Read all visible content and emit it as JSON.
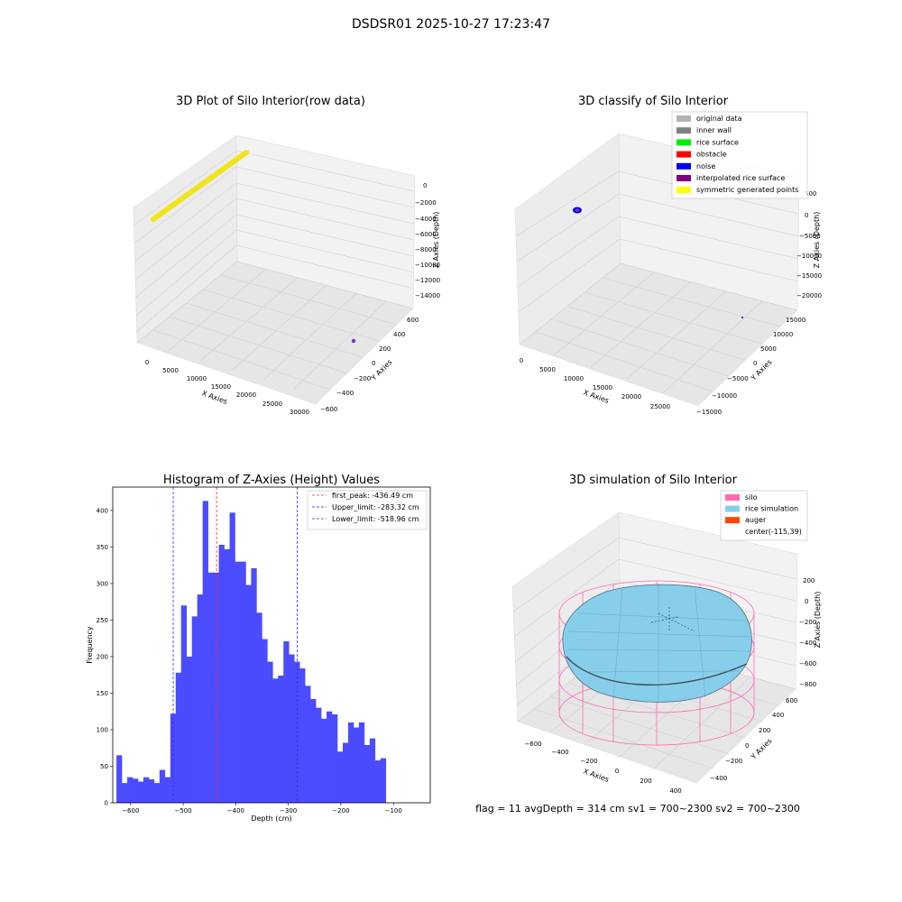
{
  "figure": {
    "suptitle": "DSDSR01 2025-10-27 17:23:47",
    "info_line": "flag = 11   avgDepth = 314 cm  sv1 = 700~2300  sv2 = 700~2300"
  },
  "colors": {
    "raw_points": "#f0e41c",
    "hist_bar": "#4b4bff",
    "peak_line": "#ff2a2a",
    "limit_line": "#2a2aff",
    "silo_wire": "#ff69b4",
    "rice_surface": "#87ceeb",
    "grid_pane": "#f2f2f2"
  },
  "chart_data": [
    {
      "type": "scatter",
      "projection": "3d",
      "title": "3D Plot of Silo Interior(row data)",
      "xlabel": "X Axies",
      "ylabel": "Y Axies",
      "zlabel": "Z Axies (Depth)",
      "xticks": [
        "0",
        "5000",
        "10000",
        "15000",
        "20000",
        "25000",
        "30000"
      ],
      "yticks": [
        "−600",
        "−400",
        "−200",
        "0",
        "200",
        "400",
        "600"
      ],
      "zticks": [
        "0",
        "−2000",
        "−4000",
        "−6000",
        "−8000",
        "−10000",
        "−12000",
        "−14000"
      ],
      "grid": true,
      "series": [
        {
          "points_note": "dense yellow band near X≈0, Z≈0",
          "color": "#f0e41c"
        },
        {
          "color": "#7b2fbf"
        }
      ]
    },
    {
      "type": "scatter",
      "projection": "3d",
      "title": "3D classify of Silo Interior",
      "xlabel": "X Axies",
      "ylabel": "Y Axies",
      "zlabel": "Z Axies (Depth)",
      "xticks": [
        "0",
        "5000",
        "10000",
        "15000",
        "20000",
        "25000"
      ],
      "yticks": [
        "−15000",
        "−10000",
        "−5000",
        "0",
        "5000",
        "10000",
        "15000"
      ],
      "zticks": [
        "500",
        "0",
        "−5000",
        "−10000",
        "−15000",
        "−20000"
      ],
      "grid": true,
      "legend_position": "upper right",
      "legend": [
        {
          "label": "original data",
          "color": "#b4b4b4"
        },
        {
          "label": "inner wall",
          "color": "#808080"
        },
        {
          "label": "rice surface",
          "color": "#00ee00"
        },
        {
          "label": "obstacle",
          "color": "#ff0000"
        },
        {
          "label": "noise",
          "color": "#0000ee"
        },
        {
          "label": "interpolated rice surface",
          "color": "#800080"
        },
        {
          "label": "symmetric generated points",
          "color": "#ffff00"
        }
      ]
    },
    {
      "type": "bar",
      "title": "Histogram of Z-Axies (Height) Values",
      "xlabel": "Depth (cm)",
      "ylabel": "Frequency",
      "xlim": [
        -634,
        -30
      ],
      "ylim": [
        0,
        432
      ],
      "xticks": [
        -600,
        -500,
        -400,
        -300,
        -200,
        -100
      ],
      "xticklabels": [
        "−600",
        "−500",
        "−400",
        "−300",
        "−200",
        "−100"
      ],
      "yticks": [
        0,
        50,
        100,
        150,
        200,
        250,
        300,
        350,
        400
      ],
      "bin_start": -627,
      "bin_width": 10.25,
      "values": [
        65,
        27,
        35,
        33,
        29,
        35,
        32,
        27,
        45,
        35,
        122,
        178,
        270,
        200,
        255,
        285,
        413,
        315,
        315,
        353,
        347,
        397,
        330,
        330,
        298,
        321,
        260,
        224,
        193,
        170,
        174,
        221,
        203,
        193,
        184,
        160,
        142,
        130,
        115,
        125,
        121,
        70,
        82,
        110,
        103,
        110,
        79,
        88,
        58,
        61
      ],
      "vlines": [
        {
          "x": -436.49,
          "style": "dashed",
          "color": "#ff2a2a",
          "label": "first_peak: -436.49 cm"
        },
        {
          "x": -283.32,
          "style": "dashed",
          "color": "#2a2aff",
          "label": "Upper_limit: -283.32 cm"
        },
        {
          "x": -518.96,
          "style": "dashed",
          "color": "#2a2aff",
          "label": "Lower_limit: -518.96 cm"
        }
      ],
      "legend_position": "upper right"
    },
    {
      "type": "surface",
      "projection": "3d",
      "title": "3D simulation of Silo Interior",
      "xlabel": "X Axies",
      "ylabel": "Y Axies",
      "zlabel": "Z Axies (Depth)",
      "xticks": [
        "−600",
        "−400",
        "−200",
        "0",
        "200",
        "400"
      ],
      "yticks": [
        "−400",
        "−200",
        "0",
        "200",
        "400",
        "600"
      ],
      "zticks": [
        "200",
        "0",
        "−200",
        "−400",
        "−600",
        "−800"
      ],
      "grid": true,
      "legend_position": "upper right",
      "legend": [
        {
          "label": "silo",
          "color": "#ff69b4"
        },
        {
          "label": "rice simulation",
          "color": "#87ceeb"
        },
        {
          "label": "auger",
          "color": "#ff4500"
        },
        {
          "label": "center(-115,39)",
          "color": ""
        }
      ]
    }
  ]
}
